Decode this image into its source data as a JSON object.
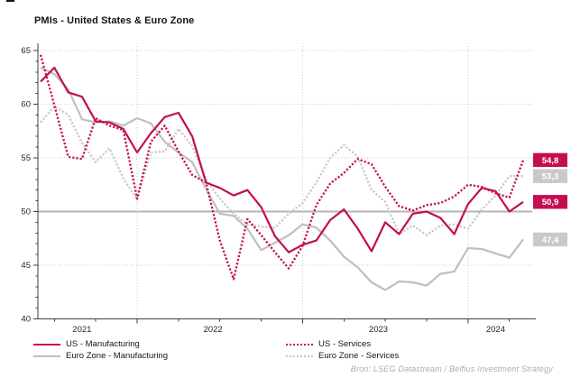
{
  "title": "PMIs - United States & Euro Zone",
  "source": "Bron: LSEG Datastream / Belfius Investment Strategy",
  "colors": {
    "us": "#C40E52",
    "euro_line": "#BFBFBF",
    "euro_label_bg": "#C9C9C9",
    "grid_dotted": "#C8C8C8",
    "reference_line": "#B5B5B5",
    "axis": "#3F3F3F",
    "axis_text": "#262626",
    "end_label_text": "#FFFFFF"
  },
  "legend": {
    "left_column": [
      {
        "series_index": 3
      },
      {
        "series_index": 1
      }
    ],
    "right_column": [
      {
        "series_index": 2
      },
      {
        "series_index": 0
      }
    ]
  },
  "chart_data": {
    "type": "line",
    "title": "PMIs - United States & Euro Zone",
    "frequency": "monthly",
    "x_start": "2021-06",
    "x_end": "2024-05",
    "x_tick_labels": [
      "2021",
      "2022",
      "2023",
      "2024"
    ],
    "ylim": [
      40,
      65
    ],
    "y_ticks": [
      40,
      45,
      50,
      55,
      60,
      65
    ],
    "reference_line": 50,
    "grid": "dotted",
    "legend_position": "bottom",
    "series": [
      {
        "name": "Euro Zone - Services",
        "style": "dotted",
        "color": "#C8C8C8",
        "label_bg": "#C9C9C9",
        "end_label": "53,3",
        "end_value": 53.3,
        "values": [
          58.3,
          59.8,
          59.0,
          56.4,
          54.6,
          55.9,
          53.1,
          51.1,
          55.5,
          55.6,
          57.7,
          56.1,
          53.0,
          51.2,
          49.8,
          48.8,
          48.6,
          48.5,
          49.8,
          50.8,
          52.7,
          55.0,
          56.2,
          55.1,
          52.0,
          50.9,
          47.9,
          48.7,
          47.8,
          48.7,
          48.8,
          48.4,
          50.2,
          51.5,
          53.3,
          53.3
        ]
      },
      {
        "name": "Euro Zone - Manufacturing",
        "style": "solid",
        "color": "#BFBFBF",
        "label_bg": "#C9C9C9",
        "end_label": "47,4",
        "end_value": 47.4,
        "values": [
          63.4,
          62.8,
          61.4,
          58.6,
          58.3,
          58.4,
          58.0,
          58.7,
          58.2,
          56.5,
          55.5,
          54.6,
          52.1,
          49.8,
          49.6,
          48.4,
          46.4,
          47.1,
          47.8,
          48.8,
          48.5,
          47.3,
          45.8,
          44.8,
          43.4,
          42.7,
          43.5,
          43.4,
          43.1,
          44.2,
          44.4,
          46.6,
          46.5,
          46.1,
          45.7,
          47.4
        ]
      },
      {
        "name": "US - Services",
        "style": "dotted",
        "color": "#C40E52",
        "label_bg": "#C40E52",
        "end_label": "54,8",
        "end_value": 54.8,
        "values": [
          64.6,
          59.9,
          55.1,
          54.9,
          58.7,
          58.0,
          57.6,
          51.2,
          56.5,
          58.0,
          55.6,
          53.4,
          52.7,
          47.3,
          43.7,
          49.3,
          47.8,
          46.2,
          44.7,
          46.8,
          50.6,
          52.6,
          53.6,
          54.9,
          54.4,
          52.3,
          50.5,
          50.1,
          50.6,
          50.8,
          51.4,
          52.5,
          52.3,
          51.7,
          51.3,
          54.8
        ]
      },
      {
        "name": "US - Manufacturing",
        "style": "solid",
        "color": "#C40E52",
        "label_bg": "#C40E52",
        "end_label": "50,9",
        "end_value": 50.9,
        "values": [
          62.1,
          63.4,
          61.1,
          60.7,
          58.4,
          58.3,
          57.7,
          55.5,
          57.3,
          58.8,
          59.2,
          57.0,
          52.7,
          52.2,
          51.5,
          52.0,
          50.4,
          47.7,
          46.2,
          46.9,
          47.3,
          49.2,
          50.2,
          48.4,
          46.3,
          49.0,
          47.9,
          49.8,
          50.0,
          49.4,
          47.9,
          50.7,
          52.2,
          51.9,
          50.0,
          50.9
        ]
      }
    ]
  }
}
